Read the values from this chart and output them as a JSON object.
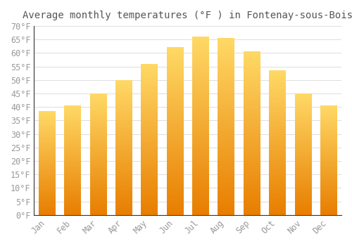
{
  "title": "Average monthly temperatures (°F ) in Fontenay-sous-Bois",
  "months": [
    "Jan",
    "Feb",
    "Mar",
    "Apr",
    "May",
    "Jun",
    "Jul",
    "Aug",
    "Sep",
    "Oct",
    "Nov",
    "Dec"
  ],
  "values": [
    38.5,
    40.5,
    45.0,
    50.0,
    56.0,
    62.0,
    66.0,
    65.5,
    60.5,
    53.5,
    45.0,
    40.5
  ],
  "bar_color_top": "#FFD966",
  "bar_color_bottom": "#E87E00",
  "ylim": [
    0,
    70
  ],
  "yticks": [
    0,
    5,
    10,
    15,
    20,
    25,
    30,
    35,
    40,
    45,
    50,
    55,
    60,
    65,
    70
  ],
  "background_color": "#FFFFFF",
  "grid_color": "#DDDDDD",
  "title_fontsize": 10,
  "tick_fontsize": 8.5,
  "font_family": "monospace"
}
